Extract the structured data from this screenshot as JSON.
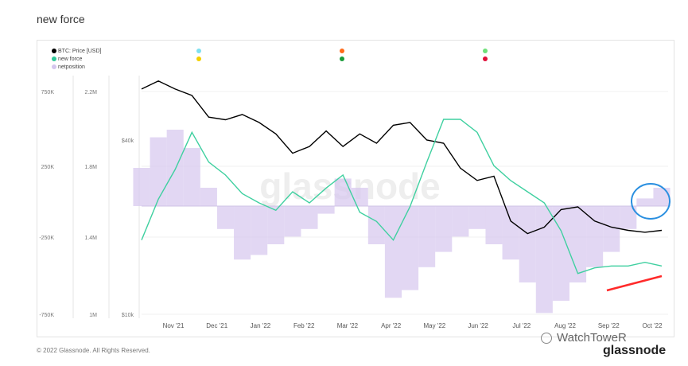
{
  "title": "new force",
  "legend": [
    {
      "label": "BTC: Price [USD]",
      "color": "#000000"
    },
    {
      "label": "new force",
      "color": "#2fc99a"
    },
    {
      "label": "netposition",
      "color": "#c9b8e6"
    }
  ],
  "watermark": "glassnode",
  "footer": "© 2022 Glassnode. All Rights Reserved.",
  "brand_corner": "WatchToweR",
  "brand_logo": "glassnode",
  "colors": {
    "price": "#000000",
    "new_force": "#3fd0a0",
    "netposition": "#d5c6ee",
    "circle": "#2a8fe0",
    "arrow": "#ff2a2a"
  },
  "chart_data": {
    "type": "line",
    "x_ticks": [
      "Nov '21",
      "Dec '21",
      "Jan '22",
      "Feb '22",
      "Mar '22",
      "Apr '22",
      "May '22",
      "Jun '22",
      "Jul '22",
      "Aug '22",
      "Sep '22",
      "Oct '22"
    ],
    "y_axes": {
      "netposition": {
        "ticks": [
          "750K",
          "250K",
          "-250K",
          "-750K"
        ],
        "ylim": [
          -750000,
          750000
        ]
      },
      "new_force": {
        "ticks": [
          "2.2M",
          "1.8M",
          "1.4M",
          "1M"
        ],
        "ylim": [
          1000000,
          2200000
        ]
      },
      "price": {
        "ticks": [
          "$40k",
          "$10k"
        ],
        "scale": "log"
      }
    },
    "series": [
      {
        "name": "BTC: Price [USD]",
        "axis": "price",
        "values": [
          60000,
          64000,
          60000,
          57000,
          48000,
          47000,
          49000,
          46000,
          42000,
          36000,
          38000,
          43000,
          38000,
          42000,
          39000,
          45000,
          46000,
          40000,
          39000,
          32000,
          29000,
          30000,
          21000,
          19000,
          20000,
          23000,
          23500,
          21000,
          20000,
          19500,
          19200,
          19500
        ]
      },
      {
        "name": "new force",
        "axis": "new_force",
        "values": [
          1.4,
          1.62,
          1.78,
          1.98,
          1.82,
          1.75,
          1.65,
          1.6,
          1.56,
          1.66,
          1.6,
          1.68,
          1.75,
          1.55,
          1.5,
          1.4,
          1.58,
          1.82,
          2.05,
          2.05,
          1.98,
          1.8,
          1.72,
          1.66,
          1.6,
          1.45,
          1.22,
          1.25,
          1.26,
          1.26,
          1.28,
          1.26
        ]
      },
      {
        "name": "netposition",
        "axis": "netposition",
        "values": [
          250000,
          450000,
          500000,
          380000,
          120000,
          -150000,
          -350000,
          -320000,
          -250000,
          -200000,
          -150000,
          -50000,
          180000,
          120000,
          -250000,
          -600000,
          -550000,
          -400000,
          -300000,
          -200000,
          -150000,
          -250000,
          -350000,
          -500000,
          -700000,
          -620000,
          -500000,
          -400000,
          -300000,
          -150000,
          50000,
          120000
        ]
      }
    ]
  }
}
